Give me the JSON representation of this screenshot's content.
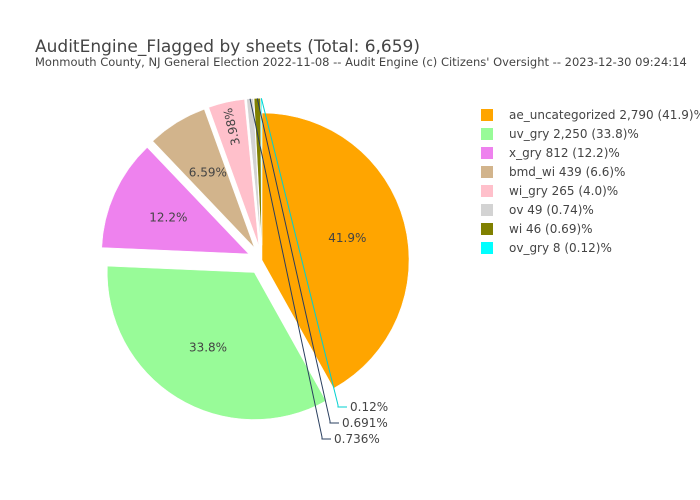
{
  "chart_data": {
    "type": "pie",
    "title": "AuditEngine_Flagged by sheets (Total: 6,659)",
    "subtitle": "Monmouth County, NJ General Election 2022-11-08 -- Audit Engine (c) Citizens' Oversight -- 2023-12-30 09:24:14",
    "legend_position": "right",
    "slices": [
      {
        "key": "ae_uncategorized",
        "value": 2790,
        "color": "#ffa500",
        "legend": "ae_uncategorized 2,790 (41.9)%",
        "label": "41.9%",
        "pull": 0,
        "label_pos": "inside"
      },
      {
        "key": "uv_gry",
        "value": 2250,
        "color": "#98fb98",
        "legend": "uv_gry 2,250 (33.8)%",
        "label": "33.8%",
        "pull": 0.1,
        "label_pos": "inside"
      },
      {
        "key": "x_gry",
        "value": 812,
        "color": "#ee82ee",
        "legend": "x_gry 812 (12.2)%",
        "label": "12.2%",
        "pull": 0.1,
        "label_pos": "inside"
      },
      {
        "key": "bmd_wi",
        "value": 439,
        "color": "#d2b48c",
        "legend": "bmd_wi 439 (6.6)%",
        "label": "6.59%",
        "pull": 0.1,
        "label_pos": "inside"
      },
      {
        "key": "wi_gry",
        "value": 265,
        "color": "#ffc0cb",
        "legend": "wi_gry 265 (4.0)%",
        "label": "3.98%",
        "pull": 0.1,
        "label_pos": "inside-rotated"
      },
      {
        "key": "ov",
        "value": 49,
        "color": "#d3d3d3",
        "legend": "ov 49 (0.74)%",
        "label": "0.736%",
        "pull": 0.1,
        "label_pos": "outside"
      },
      {
        "key": "wi",
        "value": 46,
        "color": "#808000",
        "legend": "wi 46 (0.69)%",
        "label": "0.691%",
        "pull": 0.1,
        "label_pos": "outside"
      },
      {
        "key": "ov_gry",
        "value": 8,
        "color": "#00ffff",
        "legend": "ov_gry 8 (0.12)%",
        "label": "0.12%",
        "pull": 0.1,
        "label_pos": "outside"
      }
    ]
  }
}
